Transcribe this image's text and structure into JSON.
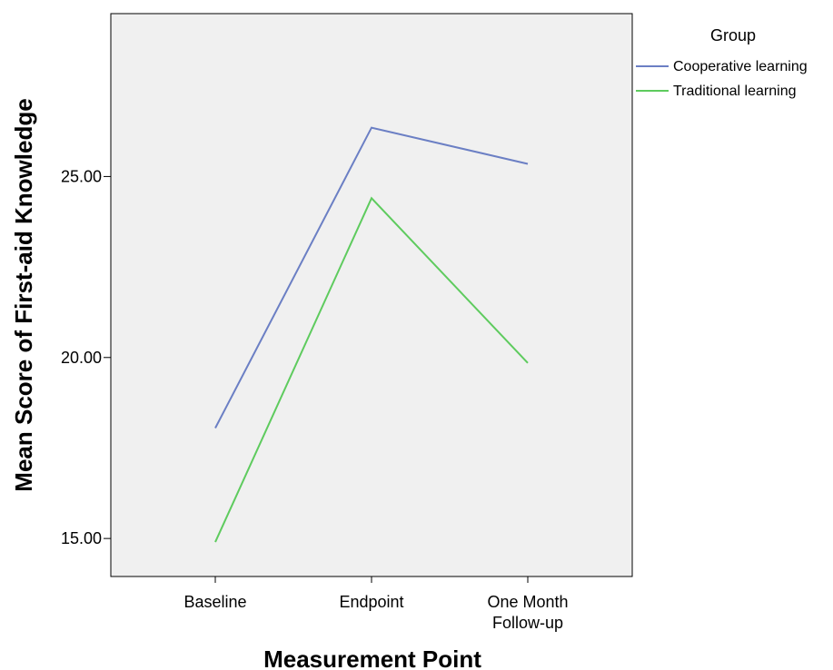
{
  "chart_data": {
    "type": "line",
    "categories": [
      "Baseline",
      "Endpoint",
      "One Month Follow-up"
    ],
    "category_lines": [
      [
        "Baseline"
      ],
      [
        "Endpoint"
      ],
      [
        "One Month",
        "Follow-up"
      ]
    ],
    "series": [
      {
        "name": "Cooperative learning",
        "values": [
          18.05,
          26.35,
          25.35
        ],
        "color": "#6b7fc4"
      },
      {
        "name": "Traditional learning",
        "values": [
          14.9,
          24.4,
          19.85
        ],
        "color": "#5ecb5e"
      }
    ],
    "ylim": [
      13.95,
      29.5
    ],
    "yticks": [
      15,
      20,
      25
    ],
    "ytick_labels": [
      "15.00",
      "20.00",
      "25.00"
    ],
    "xlabel": "Measurement Point",
    "ylabel": "Mean Score of First-aid Knowledge",
    "legend_title": "Group",
    "legend_position": "top-right",
    "plot_background": "#f0f0f0",
    "grid": false
  }
}
